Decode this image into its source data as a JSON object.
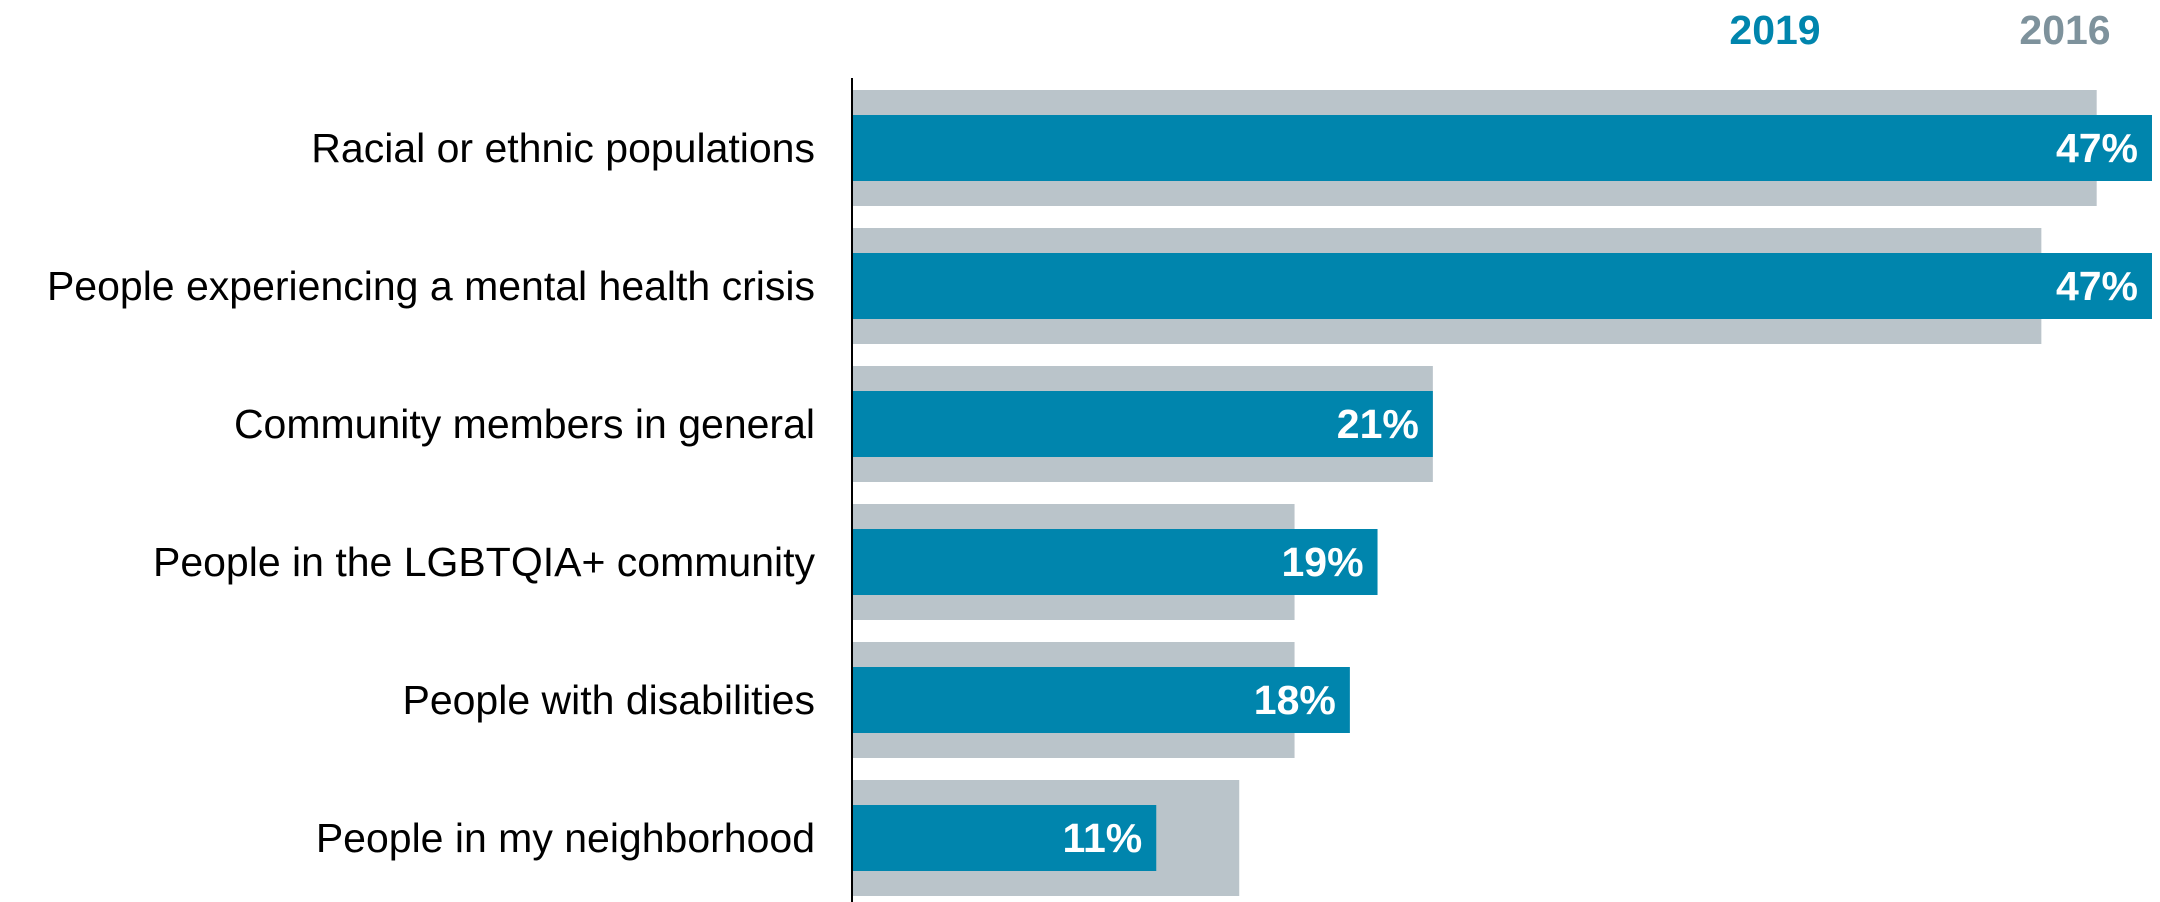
{
  "chart_data": {
    "type": "bar",
    "orientation": "horizontal",
    "categories": [
      "Racial or ethnic populations",
      "People experiencing a mental health crisis",
      "Community members in general",
      "People in the LGBTQIA+ community",
      "People with disabilities",
      "People in my neighborhood"
    ],
    "series": [
      {
        "name": "2019",
        "color": "#0085AD",
        "values": [
          47,
          47,
          21,
          19,
          18,
          11
        ],
        "labels": [
          "47%",
          "47%",
          "21%",
          "19%",
          "18%",
          "11%"
        ]
      },
      {
        "name": "2016",
        "color": "#BAC4CA",
        "values": [
          45,
          43,
          21,
          16,
          16,
          14
        ]
      }
    ],
    "legend": {
      "placement": "top-right",
      "items": [
        {
          "label": "2019",
          "color": "#0085AD"
        },
        {
          "label": "2016",
          "color": "#7E929C"
        }
      ]
    },
    "xlim": [
      0,
      47
    ],
    "grid": false,
    "title": "",
    "xlabel": "",
    "ylabel": ""
  }
}
